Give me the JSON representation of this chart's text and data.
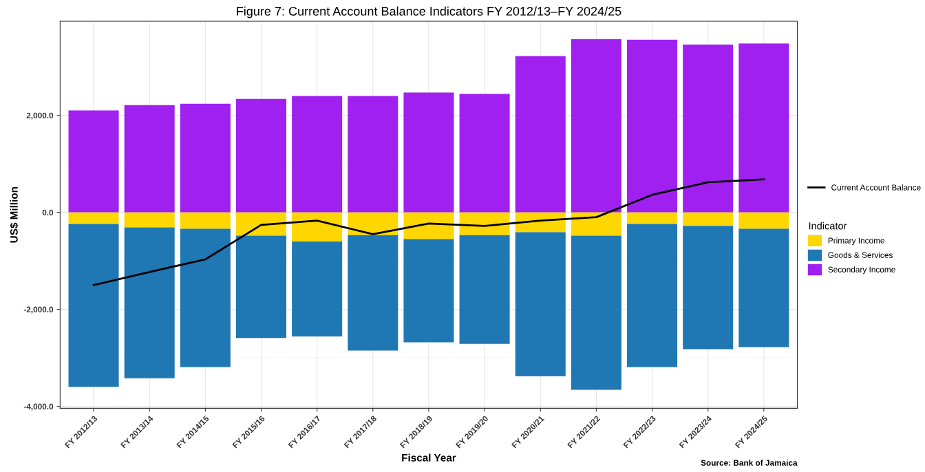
{
  "chart_data": {
    "type": "bar",
    "stacked": true,
    "title": "Figure 7: Current Account Balance Indicators FY 2012/13–FY 2024/25",
    "xlabel": "Fiscal Year",
    "ylabel": "US$ Million",
    "legend_title": "Indicator",
    "legend": "right",
    "grid": true,
    "categories": [
      "FY 2012/13",
      "FY 2013/14",
      "FY 2014/15",
      "FY 2015/16",
      "FY 2016/17",
      "FY 2017/18",
      "FY 2018/19",
      "FY 2019/20",
      "FY 2020/21",
      "FY 2021/22",
      "FY 2022/23",
      "FY 2023/24",
      "FY 2024/25"
    ],
    "series": [
      {
        "name": "Primary Income",
        "color": "#ffd700",
        "values": [
          -240,
          -310,
          -340,
          -480,
          -600,
          -470,
          -550,
          -470,
          -410,
          -480,
          -240,
          -280,
          -340
        ]
      },
      {
        "name": "Goods & Services",
        "color": "#1f77b4",
        "values": [
          -3360,
          -3110,
          -2850,
          -2110,
          -1960,
          -2380,
          -2130,
          -2240,
          -2970,
          -3180,
          -2950,
          -2540,
          -2440
        ]
      },
      {
        "name": "Secondary Income",
        "color": "#a020f0",
        "values": [
          2100,
          2210,
          2240,
          2340,
          2400,
          2400,
          2470,
          2440,
          3220,
          3570,
          3560,
          3460,
          3480
        ]
      },
      {
        "name": "Current Account Balance",
        "type": "line",
        "color": "#000000",
        "values": [
          -1500,
          -1230,
          -970,
          -260,
          -170,
          -450,
          -230,
          -280,
          -170,
          -100,
          360,
          620,
          680
        ]
      }
    ],
    "ylim": [
      -4040,
      3940
    ],
    "yticks": [
      {
        "value": -4000,
        "label": "-4,000.0"
      },
      {
        "value": -2000,
        "label": "-2,000.0"
      },
      {
        "value": 0,
        "label": "0.0"
      },
      {
        "value": 2000,
        "label": "2,000.0"
      }
    ],
    "annotations": [
      "Source: Bank of Jamaica"
    ]
  }
}
